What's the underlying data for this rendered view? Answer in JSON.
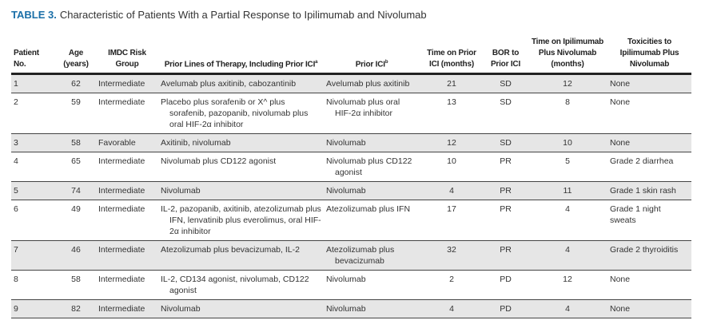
{
  "title": {
    "label": "TABLE 3.",
    "text": "Characteristic of Patients With a Partial Response to Ipilimumab and Nivolumab"
  },
  "headers": [
    "Patient No.",
    "Age (years)",
    "IMDC Risk Group",
    "Prior Lines of Therapy, Including Prior ICI",
    "Prior ICI",
    "Time on Prior ICI (months)",
    "BOR to Prior ICI",
    "Time on Ipilimumab Plus Nivolumab (months)",
    "Toxicities to Ipilimumab Plus Nivolumab"
  ],
  "header_notes": {
    "prior_lines": "a",
    "prior_ici": "b"
  },
  "rows": [
    {
      "patient": "1",
      "age": "62",
      "risk": "Intermediate",
      "prior_lines": "Avelumab plus axitinib, cabozantinib",
      "prior_ici": "Avelumab plus axitinib",
      "time_prior": "21",
      "bor": "SD",
      "time_ipi": "12",
      "tox": "None"
    },
    {
      "patient": "2",
      "age": "59",
      "risk": "Intermediate",
      "prior_lines": "Placebo plus sorafenib or X^ plus sorafenib, pazopanib, nivolumab plus oral HIF-2α inhibitor",
      "prior_ici": "Nivolumab plus oral HIF-2α inhibitor",
      "time_prior": "13",
      "bor": "SD",
      "time_ipi": "8",
      "tox": "None"
    },
    {
      "patient": "3",
      "age": "58",
      "risk": "Favorable",
      "prior_lines": "Axitinib, nivolumab",
      "prior_ici": "Nivolumab",
      "time_prior": "12",
      "bor": "SD",
      "time_ipi": "10",
      "tox": "None"
    },
    {
      "patient": "4",
      "age": "65",
      "risk": "Intermediate",
      "prior_lines": "Nivolumab plus CD122 agonist",
      "prior_ici": "Nivolumab plus CD122 agonist",
      "time_prior": "10",
      "bor": "PR",
      "time_ipi": "5",
      "tox": "Grade 2 diarrhea"
    },
    {
      "patient": "5",
      "age": "74",
      "risk": "Intermediate",
      "prior_lines": "Nivolumab",
      "prior_ici": "Nivolumab",
      "time_prior": "4",
      "bor": "PR",
      "time_ipi": "11",
      "tox": "Grade 1 skin rash"
    },
    {
      "patient": "6",
      "age": "49",
      "risk": "Intermediate",
      "prior_lines": "IL-2, pazopanib, axitinib, atezolizumab plus IFN, lenvatinib plus everolimus, oral HIF-2α inhibitor",
      "prior_ici": "Atezolizumab plus IFN",
      "time_prior": "17",
      "bor": "PR",
      "time_ipi": "4",
      "tox": "Grade 1 night sweats"
    },
    {
      "patient": "7",
      "age": "46",
      "risk": "Intermediate",
      "prior_lines": "Atezolizumab plus bevacizumab, IL-2",
      "prior_ici": "Atezolizumab plus bevacizumab",
      "time_prior": "32",
      "bor": "PR",
      "time_ipi": "4",
      "tox": "Grade 2 thyroiditis"
    },
    {
      "patient": "8",
      "age": "58",
      "risk": "Intermediate",
      "prior_lines": "IL-2, CD134 agonist, nivolumab, CD122 agonist",
      "prior_ici": "Nivolumab",
      "time_prior": "2",
      "bor": "PD",
      "time_ipi": "12",
      "tox": "None"
    },
    {
      "patient": "9",
      "age": "82",
      "risk": "Intermediate",
      "prior_lines": "Nivolumab",
      "prior_ici": "Nivolumab",
      "time_prior": "4",
      "bor": "PD",
      "time_ipi": "4",
      "tox": "None"
    }
  ]
}
